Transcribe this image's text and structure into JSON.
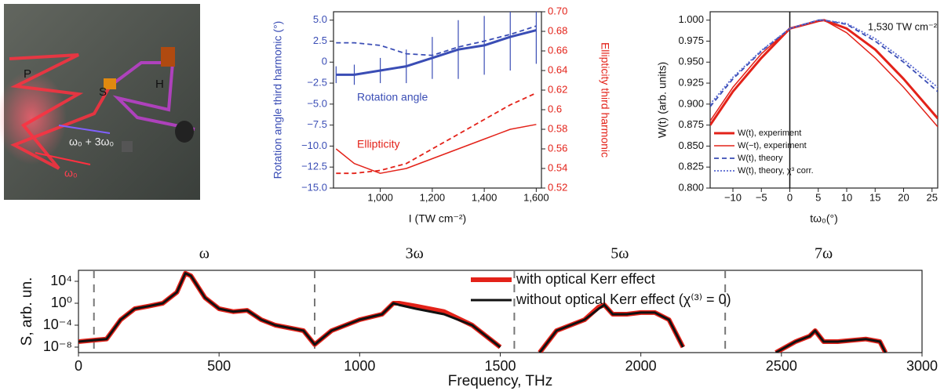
{
  "setup_labels": [
    "P",
    "S",
    "H",
    "ω₀",
    "ω₀ + 3ω₀"
  ],
  "chart_data": [
    {
      "type": "line",
      "x_label": "I (TW cm⁻²)",
      "y_label": "Rotation angle third harmonic (°)",
      "y2_label": "Ellipticity third harmonic",
      "ycolor": "#3a4db5",
      "y2color": "#e32219",
      "x": [
        830,
        900,
        1000,
        1100,
        1200,
        1300,
        1400,
        1500,
        1600
      ],
      "xlim": [
        820,
        1620
      ],
      "xticks": [
        {
          "value": 1000,
          "label": "1,000"
        },
        {
          "value": 1200,
          "label": "1,200"
        },
        {
          "value": 1400,
          "label": "1,400"
        },
        {
          "value": 1600,
          "label": "1,600"
        }
      ],
      "ylim": [
        -15,
        6
      ],
      "yticks": [
        {
          "value": 5,
          "label": "5.0"
        },
        2.5,
        0,
        {
          "value": -2.5,
          "label": "−2.5"
        },
        {
          "value": -5,
          "label": "−5.0"
        },
        {
          "value": -7.5,
          "label": "−7.5"
        },
        {
          "value": -10,
          "label": "−10.0"
        },
        {
          "value": -12.5,
          "label": "−12.5"
        },
        {
          "value": -15,
          "label": "−15.0"
        }
      ],
      "y2lim": [
        0.52,
        0.7
      ],
      "y2ticks": [
        0.52,
        0.54,
        0.56,
        0.58,
        0.6,
        0.62,
        0.64,
        0.66,
        0.68,
        {
          "value": 0.7,
          "label": "0.70"
        }
      ],
      "series": [
        {
          "name": "Rotation angle",
          "color": "#3a4db5",
          "linestyle": "thick",
          "values": [
            -1.5,
            -1.5,
            -1,
            -0.5,
            0.5,
            1.5,
            2,
            3,
            3.8
          ],
          "errors": [
            1,
            1.2,
            1.5,
            2,
            2.5,
            3.5,
            3.5,
            4,
            4
          ]
        },
        {
          "color": "#3a4db5",
          "linestyle": "dashed",
          "values": [
            2.3,
            2.3,
            2,
            1,
            0.8,
            1.8,
            2.5,
            3.3,
            4.3
          ]
        },
        {
          "name": "Ellipticity",
          "color": "#e32219",
          "linestyle": "thin",
          "axis": "y2",
          "values": [
            0.56,
            0.545,
            0.535,
            0.54,
            0.55,
            0.56,
            0.57,
            0.58,
            0.585
          ]
        },
        {
          "color": "#e32219",
          "linestyle": "dashed",
          "axis": "y2",
          "values": [
            0.535,
            0.535,
            0.538,
            0.545,
            0.56,
            0.575,
            0.59,
            0.605,
            0.617
          ]
        }
      ]
    },
    {
      "type": "line",
      "x_label": "tω₀(°)",
      "y_label": "W(t) (arb. units)",
      "annotation": "1,530 TW cm⁻²",
      "legend": "lower left",
      "x": [
        -14,
        -10,
        -5,
        0,
        5,
        6,
        10,
        15,
        20,
        26
      ],
      "xlim": [
        -14,
        26
      ],
      "xticks": [
        {
          "value": -10,
          "label": "−10"
        },
        {
          "value": -5,
          "label": "−5"
        },
        0,
        5,
        10,
        15,
        20,
        25
      ],
      "ylim": [
        0.8,
        1.01
      ],
      "yticks": [
        {
          "value": 0.8,
          "label": "0.800"
        },
        0.825,
        {
          "value": 0.85,
          "label": "0.850"
        },
        0.875,
        {
          "value": 0.9,
          "label": "0.900"
        },
        0.925,
        {
          "value": 0.95,
          "label": "0.950"
        },
        0.975,
        {
          "value": 1,
          "label": "1.000"
        }
      ],
      "vlines": [
        0
      ],
      "series": [
        {
          "name": "W(t), experiment",
          "color": "#e32219",
          "linestyle": "thick",
          "values": [
            0.875,
            0.915,
            0.955,
            0.99,
            0.999,
            1,
            0.99,
            0.965,
            0.93,
            0.883
          ]
        },
        {
          "name": "W(−t), experiment",
          "color": "#e32219",
          "linestyle": "thin",
          "values": [
            0.88,
            0.92,
            0.96,
            0.99,
            0.999,
            1,
            0.985,
            0.955,
            0.92,
            0.873
          ]
        },
        {
          "name": "W(t), theory",
          "color": "#3a4db5",
          "linestyle": "dashed",
          "values": [
            0.897,
            0.93,
            0.963,
            0.99,
            1,
            1,
            0.995,
            0.975,
            0.95,
            0.915
          ]
        },
        {
          "name": "W(t), theory, χ³ corr.",
          "color": "#5a6ad0",
          "linestyle": "dotted",
          "values": [
            0.9,
            0.932,
            0.964,
            0.99,
            1,
            1,
            0.996,
            0.978,
            0.953,
            0.92
          ]
        }
      ]
    },
    {
      "type": "line",
      "x_label": "Frequency, THz",
      "y_label": "S, arb. un.",
      "log_y": true,
      "legend": "upper center",
      "sections": [
        "ω",
        "3ω",
        "5ω",
        "7ω"
      ],
      "vlines": [
        55,
        840,
        1550,
        2300
      ],
      "x": [
        0,
        100,
        150,
        200,
        250,
        300,
        350,
        380,
        400,
        450,
        500,
        550,
        600,
        650,
        700,
        800,
        840,
        900,
        1000,
        1080,
        1100,
        1120,
        1140,
        1200,
        1300,
        1400,
        1500,
        1530,
        1640,
        1700,
        1800,
        1850,
        1870,
        1900,
        1950,
        2000,
        2050,
        2100,
        2150,
        2170,
        2480,
        2550,
        2600,
        2620,
        2650,
        2700,
        2800,
        2850,
        2870
      ],
      "xlim": [
        0,
        3000
      ],
      "xticks": [
        0,
        500,
        1000,
        1500,
        2000,
        2500,
        3000
      ],
      "ylim": [
        1e-09,
        1000000.0
      ],
      "yticks": [
        {
          "value": 1e-08,
          "label": "10⁻⁸"
        },
        {
          "value": 0.0001,
          "label": "10⁻⁴"
        },
        {
          "value": 1,
          "label": "10⁰"
        },
        {
          "value": 10000,
          "label": "10⁴"
        }
      ],
      "series": [
        {
          "name": "with optical Kerr effect",
          "color": "#e32219",
          "linestyle": "heavy",
          "values": [
            1e-07,
            3e-07,
            0.001,
            0.1,
            0.3,
            1,
            100,
            300000,
            100000,
            10,
            0.1,
            0.03,
            0.05,
            0.001,
            0.0001,
            1e-05,
            3e-08,
            1e-05,
            0.001,
            0.01,
            0.1,
            1,
            1,
            0.3,
            0.03,
            0.0001,
            1e-08,
            null,
            1e-09,
            1e-05,
            0.001,
            0.2,
            0.5,
            0.01,
            0.01,
            0.02,
            0.02,
            0.001,
            1e-08,
            null,
            1e-09,
            1e-07,
            1e-06,
            1e-05,
            1e-07,
            1e-07,
            3e-07,
            1e-07,
            1e-09
          ]
        },
        {
          "name": "without optical Kerr effect (χ⁽³⁾ = 0)",
          "color": "#111111",
          "linestyle": "thick",
          "values": [
            1e-07,
            3e-07,
            0.001,
            0.1,
            0.3,
            1,
            100,
            300000,
            100000,
            10,
            0.1,
            0.03,
            0.05,
            0.001,
            0.0001,
            1e-05,
            3e-08,
            1e-05,
            0.001,
            0.01,
            0.1,
            1,
            0.5,
            0.1,
            0.01,
            0.0001,
            1e-08,
            null,
            1e-09,
            1e-05,
            0.001,
            0.1,
            0.5,
            0.01,
            0.01,
            0.02,
            0.02,
            0.001,
            1e-08,
            null,
            1e-09,
            1e-07,
            1e-06,
            1e-05,
            1e-07,
            1e-07,
            3e-07,
            1e-07,
            1e-09
          ]
        }
      ]
    }
  ]
}
